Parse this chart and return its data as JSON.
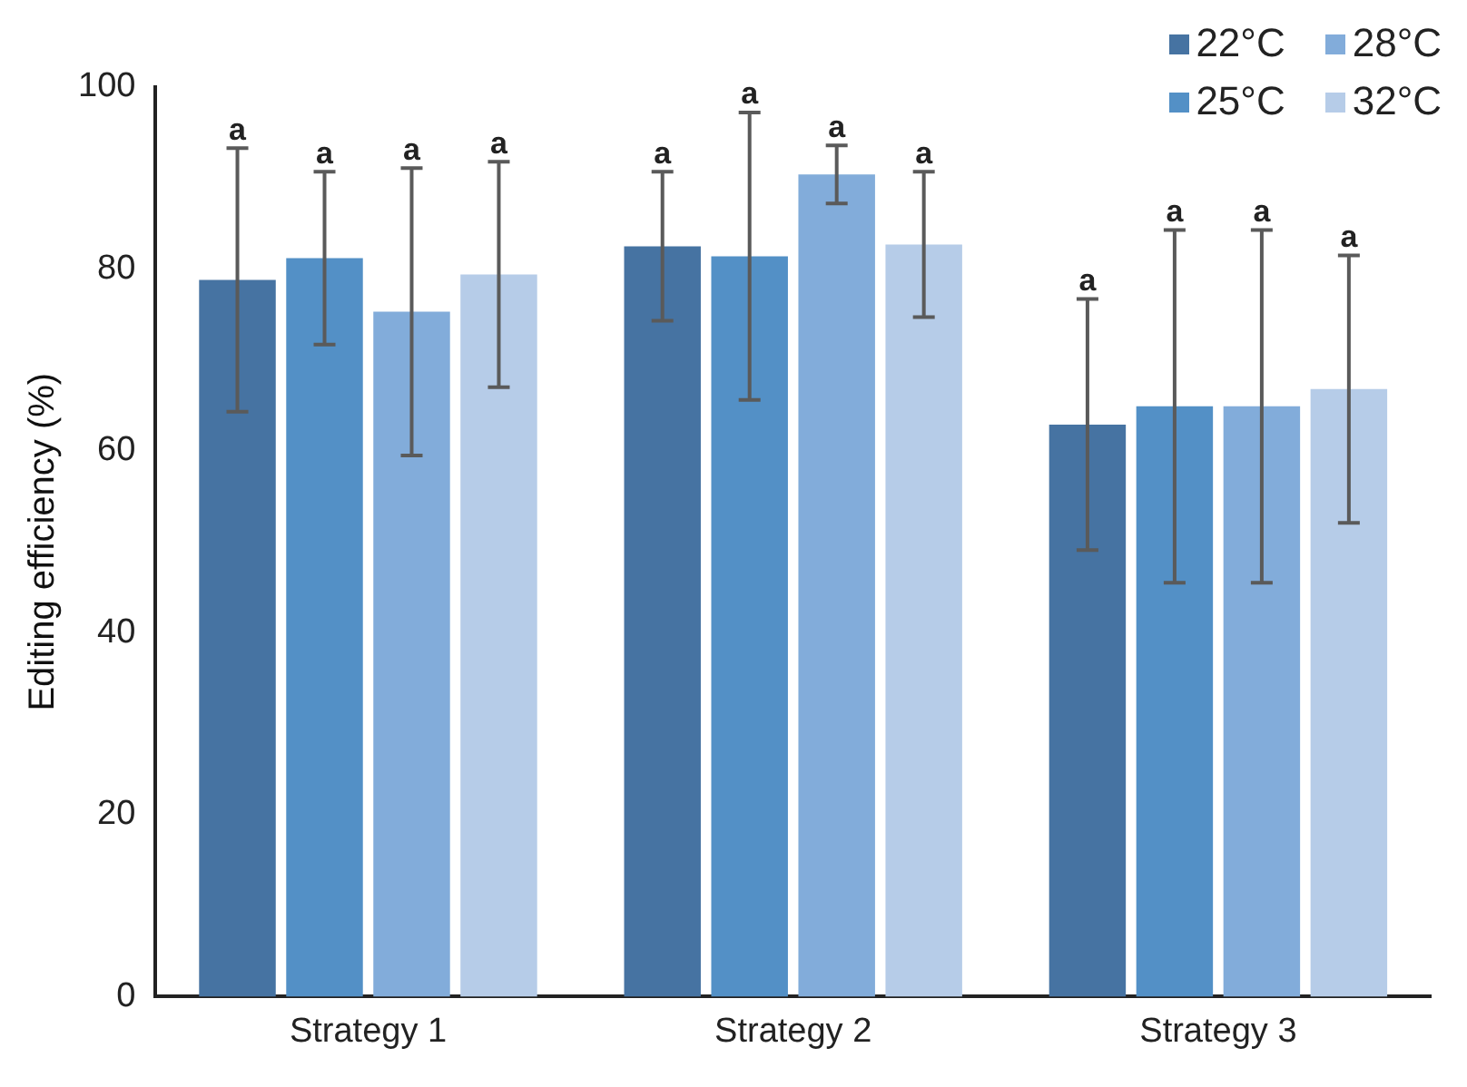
{
  "chart_data": {
    "type": "bar",
    "ylabel": "Editing efficiency (%)",
    "categories": [
      "Strategy 1",
      "Strategy 2",
      "Strategy 3"
    ],
    "series": [
      {
        "name": "22°C",
        "color": "#4673a2",
        "values": [
          78.8,
          82.5,
          62.9
        ],
        "errors": [
          14.5,
          8.2,
          13.8
        ]
      },
      {
        "name": "25°C",
        "color": "#5390c6",
        "values": [
          81.2,
          81.4,
          64.9
        ],
        "errors": [
          9.5,
          15.8,
          19.4
        ]
      },
      {
        "name": "28°C",
        "color": "#82acda",
        "values": [
          75.3,
          90.4,
          64.9
        ],
        "errors": [
          15.8,
          3.2,
          19.4
        ]
      },
      {
        "name": "32°C",
        "color": "#b6cce8",
        "values": [
          79.4,
          82.7,
          66.8
        ],
        "errors": [
          12.4,
          8.0,
          14.7
        ]
      }
    ],
    "annotations": [
      "a",
      "a",
      "a",
      "a",
      "a",
      "a",
      "a",
      "a",
      "a",
      "a",
      "a",
      "a"
    ],
    "ylim": [
      0,
      100
    ],
    "yticks": [
      0,
      20,
      40,
      60,
      80,
      100
    ],
    "grid": false,
    "legend": "top right"
  }
}
